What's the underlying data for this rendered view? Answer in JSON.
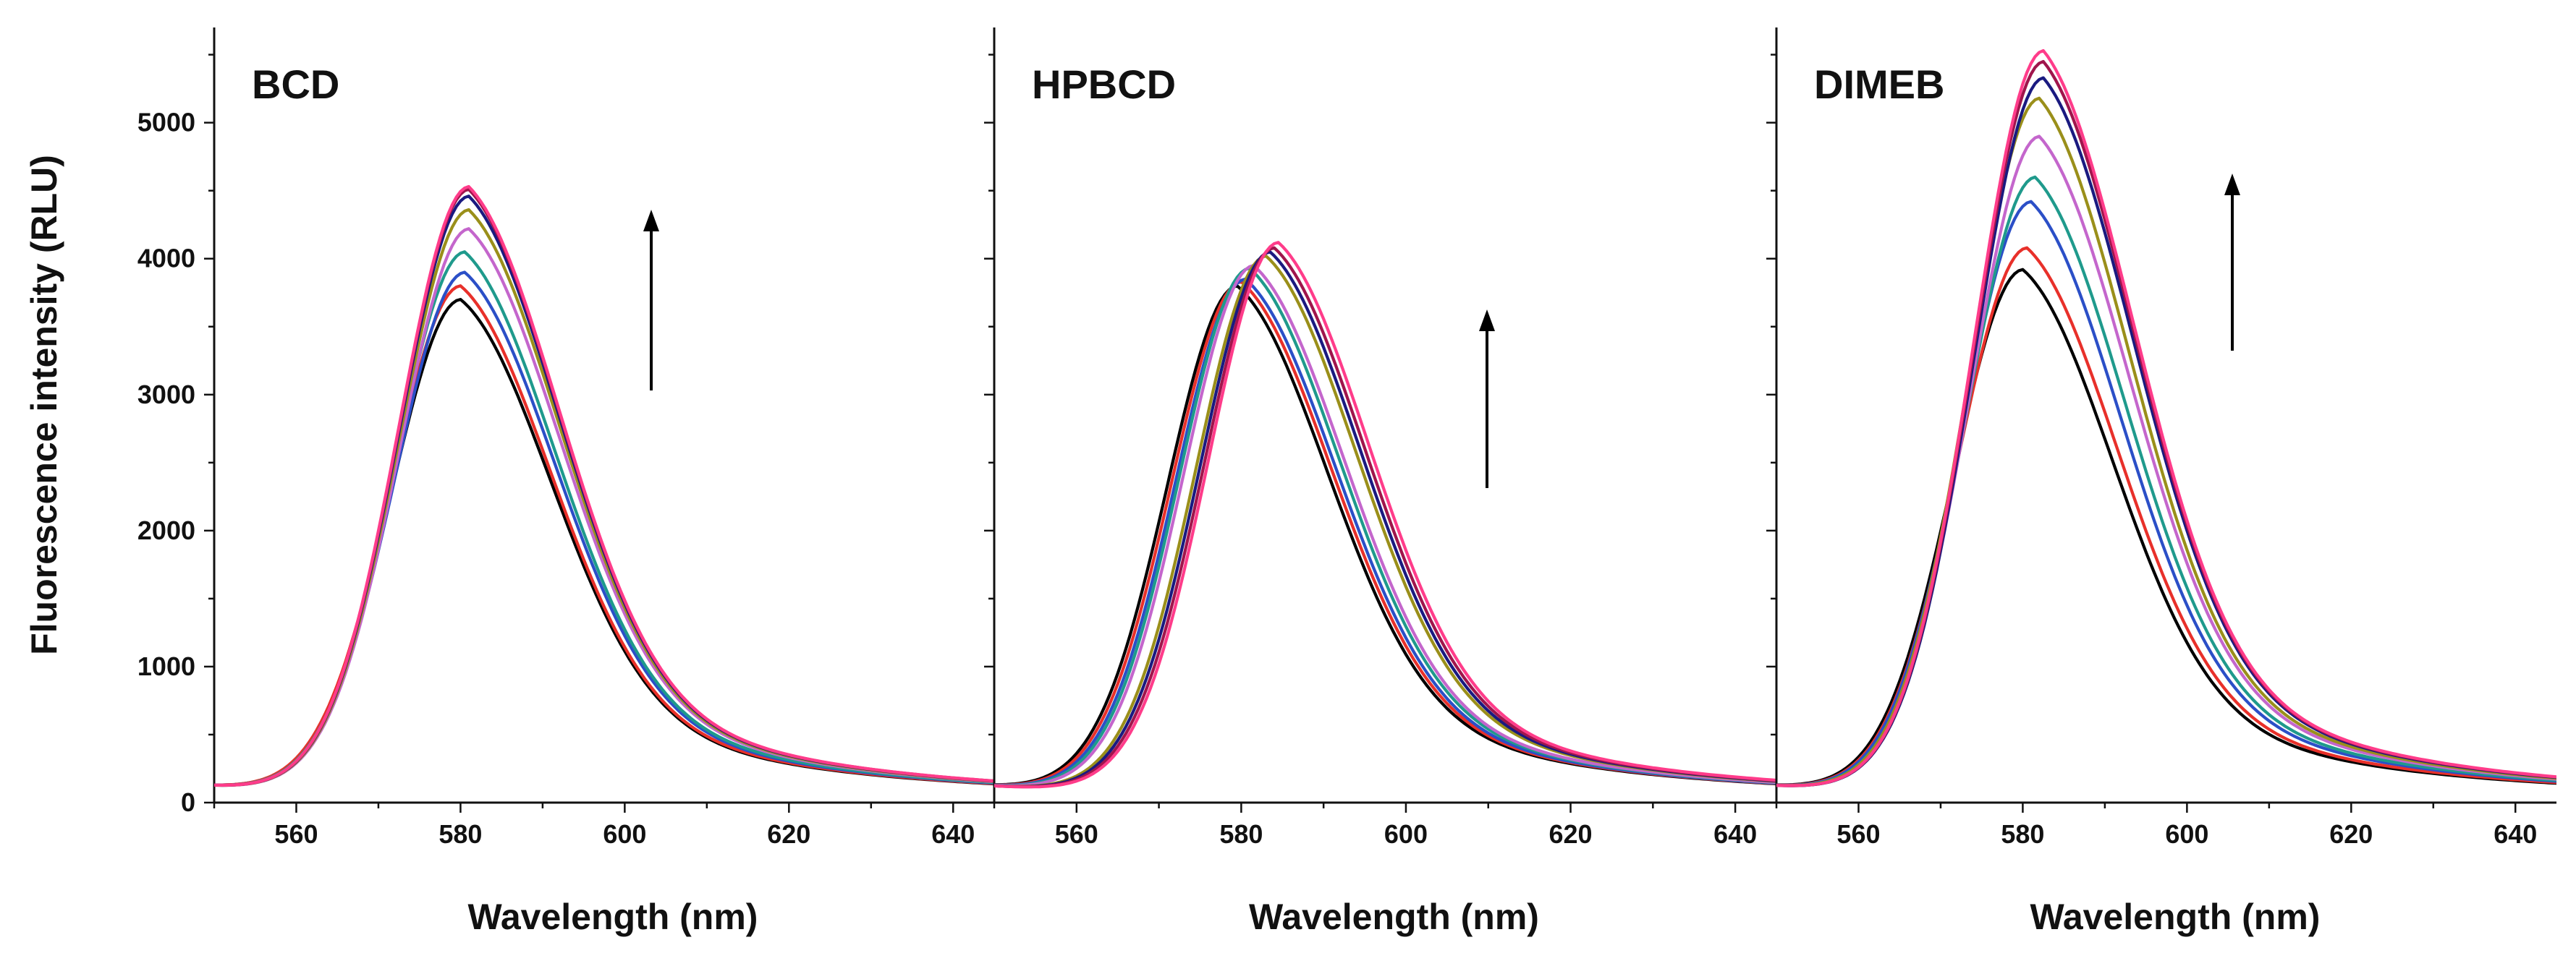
{
  "chart_data": [
    {
      "type": "line",
      "title": "BCD",
      "xlabel": "Wavelength (nm)",
      "ylabel": "Fluorescence intensity (RLU)",
      "xlim": [
        550,
        645
      ],
      "ylim": [
        0,
        5700
      ],
      "x_ticks": [
        "560",
        "580",
        "600",
        "620",
        "640"
      ],
      "y_ticks": [
        "0",
        "1000",
        "2000",
        "3000",
        "4000",
        "5000"
      ],
      "annotation": "arrow pointing up (increasing intensity)",
      "series": [
        {
          "color": "#000000",
          "peak_x": 580,
          "peak_y": 3700
        },
        {
          "color": "#e8302a",
          "peak_x": 580,
          "peak_y": 3800
        },
        {
          "color": "#2b4fc7",
          "peak_x": 580.5,
          "peak_y": 3900
        },
        {
          "color": "#1f9a8c",
          "peak_x": 580.5,
          "peak_y": 4050
        },
        {
          "color": "#c466cc",
          "peak_x": 581,
          "peak_y": 4220
        },
        {
          "color": "#9a8f1a",
          "peak_x": 581,
          "peak_y": 4360
        },
        {
          "color": "#1a1a80",
          "peak_x": 581,
          "peak_y": 4460
        },
        {
          "color": "#a0154c",
          "peak_x": 581,
          "peak_y": 4510
        },
        {
          "color": "#ff3c8a",
          "peak_x": 581,
          "peak_y": 4530
        }
      ]
    },
    {
      "type": "line",
      "title": "HPBCD",
      "xlabel": "Wavelength (nm)",
      "xlim": [
        550,
        645
      ],
      "ylim": [
        0,
        5700
      ],
      "x_ticks": [
        "560",
        "580",
        "600",
        "620",
        "640"
      ],
      "annotation": "arrow pointing up (increasing intensity)",
      "series": [
        {
          "color": "#000000",
          "peak_x": 579.5,
          "peak_y": 3800
        },
        {
          "color": "#e8302a",
          "peak_x": 580,
          "peak_y": 3830
        },
        {
          "color": "#2b4fc7",
          "peak_x": 580.5,
          "peak_y": 3850
        },
        {
          "color": "#1f9a8c",
          "peak_x": 581,
          "peak_y": 3930
        },
        {
          "color": "#c466cc",
          "peak_x": 581.5,
          "peak_y": 3950
        },
        {
          "color": "#9a8f1a",
          "peak_x": 583,
          "peak_y": 4020
        },
        {
          "color": "#1a1a80",
          "peak_x": 583.5,
          "peak_y": 4050
        },
        {
          "color": "#a0154c",
          "peak_x": 584,
          "peak_y": 4080
        },
        {
          "color": "#ff3c8a",
          "peak_x": 584.5,
          "peak_y": 4120
        }
      ]
    },
    {
      "type": "line",
      "title": "DIMEB",
      "xlabel": "Wavelength (nm)",
      "xlim": [
        550,
        645
      ],
      "ylim": [
        0,
        5700
      ],
      "x_ticks": [
        "560",
        "580",
        "600",
        "620",
        "640"
      ],
      "annotation": "arrow pointing up (increasing intensity)",
      "series": [
        {
          "color": "#000000",
          "peak_x": 580,
          "peak_y": 3920
        },
        {
          "color": "#e8302a",
          "peak_x": 580.5,
          "peak_y": 4080
        },
        {
          "color": "#2b4fc7",
          "peak_x": 581,
          "peak_y": 4420
        },
        {
          "color": "#1f9a8c",
          "peak_x": 581.5,
          "peak_y": 4600
        },
        {
          "color": "#c466cc",
          "peak_x": 582,
          "peak_y": 4900
        },
        {
          "color": "#9a8f1a",
          "peak_x": 582,
          "peak_y": 5180
        },
        {
          "color": "#1a1a80",
          "peak_x": 582.5,
          "peak_y": 5330
        },
        {
          "color": "#a0154c",
          "peak_x": 582.5,
          "peak_y": 5450
        },
        {
          "color": "#ff3c8a",
          "peak_x": 582.5,
          "peak_y": 5530
        }
      ]
    }
  ]
}
